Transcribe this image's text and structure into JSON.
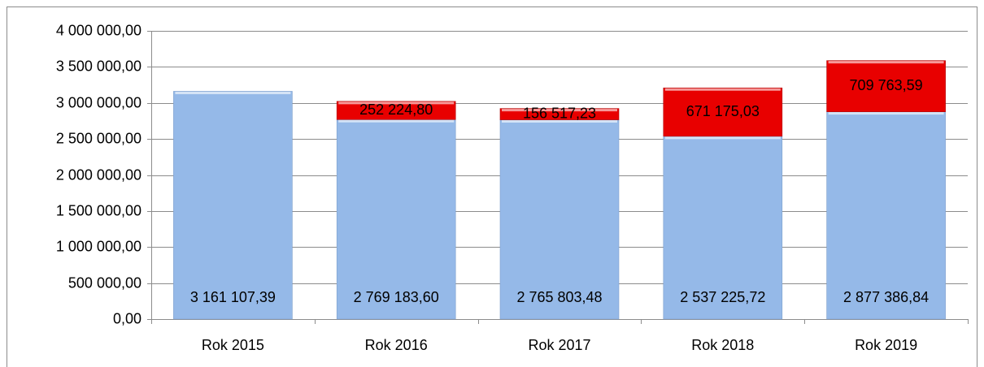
{
  "chart_data": {
    "type": "stacked_bar",
    "categories": [
      "Rok 2015",
      "Rok 2016",
      "Rok 2017",
      "Rok 2018",
      "Rok 2019"
    ],
    "series": [
      {
        "color": "#95b9e8",
        "values": [
          3161107.39,
          2769183.6,
          2765803.48,
          2537225.72,
          2877386.84
        ],
        "value_labels": [
          "3 161 107,39",
          "2 769 183,60",
          "2 765 803,48",
          "2 537 225,72",
          "2 877 386,84"
        ]
      },
      {
        "color": "#e80000",
        "values": [
          null,
          252224.8,
          156517.23,
          671175.03,
          709763.59
        ],
        "value_labels": [
          null,
          "252 224,80",
          "156 517,23",
          "671 175,03",
          "709 763,59"
        ]
      }
    ],
    "ylim": [
      0,
      4000000
    ],
    "yticks": [
      {
        "value": 0,
        "label": "0,00"
      },
      {
        "value": 500000,
        "label": "500 000,00"
      },
      {
        "value": 1000000,
        "label": "1 000 000,00"
      },
      {
        "value": 1500000,
        "label": "1 500 000,00"
      },
      {
        "value": 2000000,
        "label": "2 000 000,00"
      },
      {
        "value": 2500000,
        "label": "2 500 000,00"
      },
      {
        "value": 3000000,
        "label": "3 000 000,00"
      },
      {
        "value": 3500000,
        "label": "3 500 000,00"
      },
      {
        "value": 4000000,
        "label": "4 000 000,00"
      }
    ],
    "grid": true
  }
}
